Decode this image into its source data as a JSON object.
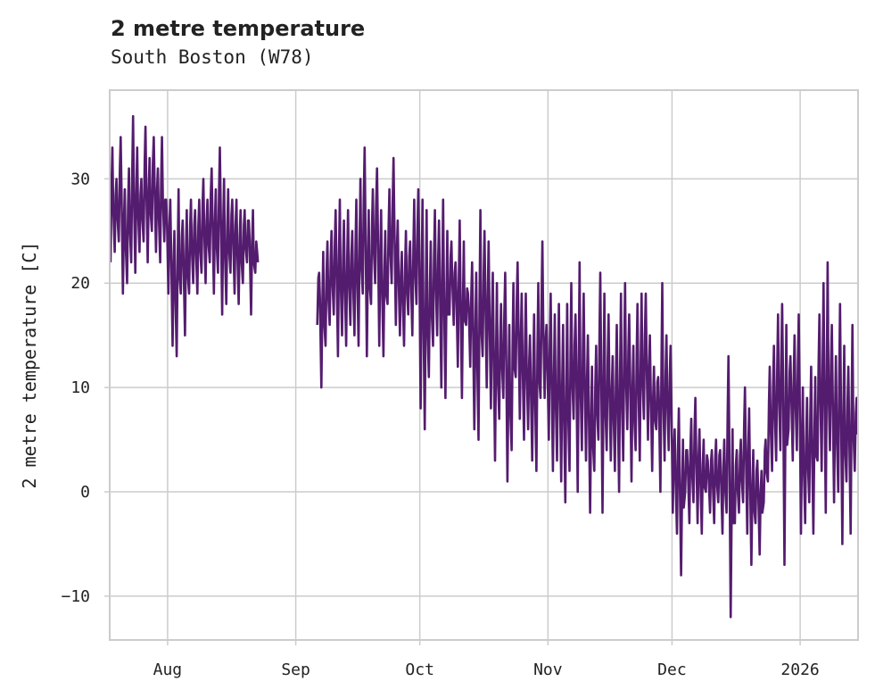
{
  "chart_data": {
    "type": "line",
    "title": "2 metre temperature",
    "subtitle": "South Boston (W78)",
    "xlabel": "",
    "ylabel": "2 metre temperature [C]",
    "ylim": [
      -14.2,
      38.5
    ],
    "yticks": [
      -10,
      0,
      10,
      20,
      30
    ],
    "ytick_labels": [
      "−10",
      "0",
      "10",
      "20",
      "30"
    ],
    "xlim": [
      "2025-07-18",
      "2026-01-15"
    ],
    "xticks": [
      "2025-08-01",
      "2025-09-01",
      "2025-10-01",
      "2025-11-01",
      "2025-12-01",
      "2026-01-01"
    ],
    "xtick_labels": [
      "Aug",
      "Sep",
      "Oct",
      "Nov",
      "Dec",
      "2026"
    ],
    "grid": true,
    "line_color": "#541c6e",
    "series": [
      {
        "name": "2 metre temperature",
        "start_date": "2025-07-18",
        "daily_high": [
          33,
          30,
          34,
          29,
          31,
          36,
          33,
          30,
          35,
          32,
          34,
          31,
          34,
          28,
          28,
          25,
          29,
          26,
          27,
          28,
          27,
          28,
          30,
          28,
          31,
          29,
          33,
          30,
          29,
          28,
          28,
          27,
          27,
          26,
          27,
          23,
          null,
          null,
          null,
          null,
          null,
          null,
          null,
          null,
          null,
          null,
          null,
          null,
          null,
          null,
          21,
          23,
          24,
          25,
          27,
          28,
          26,
          27,
          25,
          28,
          30,
          33,
          27,
          29,
          31,
          27,
          25,
          29,
          32,
          26,
          23,
          25,
          24,
          28,
          29,
          28,
          27,
          24,
          27,
          26,
          28,
          25,
          24,
          22,
          26,
          24,
          19,
          22,
          21,
          27,
          25,
          24,
          21,
          20,
          18,
          21,
          16,
          20,
          22,
          19,
          19,
          15,
          17,
          20,
          24,
          16,
          19,
          17,
          18,
          16,
          18,
          20,
          17,
          22,
          19,
          15,
          12,
          14,
          21,
          19,
          17,
          13,
          16,
          19,
          20,
          17,
          14,
          18,
          19,
          19,
          15,
          12,
          11,
          20,
          15,
          14,
          6,
          8,
          5,
          4,
          7,
          9,
          6,
          5,
          3,
          4,
          5,
          4,
          5,
          13,
          6,
          4,
          5,
          10,
          8,
          4,
          3,
          2,
          5,
          12,
          14,
          17,
          18,
          16,
          13,
          15,
          17,
          10,
          9,
          12,
          11,
          17,
          20,
          22,
          16,
          13,
          18,
          14,
          12,
          16,
          9,
          8
        ],
        "daily_low": [
          22,
          23,
          24,
          19,
          20,
          22,
          21,
          23,
          24,
          22,
          25,
          23,
          22,
          24,
          19,
          14,
          13,
          19,
          15,
          19,
          20,
          19,
          21,
          20,
          22,
          19,
          21,
          17,
          18,
          21,
          19,
          18,
          20,
          22,
          17,
          21,
          null,
          null,
          null,
          null,
          null,
          null,
          null,
          null,
          null,
          null,
          null,
          null,
          null,
          null,
          16,
          10,
          14,
          16,
          17,
          13,
          15,
          14,
          16,
          15,
          14,
          19,
          13,
          18,
          20,
          14,
          13,
          18,
          20,
          16,
          15,
          14,
          17,
          15,
          18,
          8,
          6,
          11,
          14,
          15,
          10,
          9,
          17,
          16,
          12,
          9,
          16,
          12,
          6,
          5,
          13,
          10,
          8,
          3,
          7,
          9,
          1,
          4,
          11,
          7,
          5,
          6,
          3,
          2,
          9,
          9,
          5,
          2,
          3,
          1,
          -1,
          2,
          7,
          0,
          4,
          3,
          -2,
          2,
          5,
          -2,
          4,
          3,
          2,
          0,
          3,
          6,
          1,
          4,
          3,
          7,
          5,
          2,
          6,
          0,
          3,
          4,
          -2,
          -4,
          -8,
          0,
          -3,
          -1,
          -3,
          -4,
          0,
          -2,
          -3,
          -1,
          -4,
          -2,
          -12,
          -3,
          -2,
          -1,
          -4,
          -7,
          -3,
          -6,
          -1,
          1,
          2,
          3,
          4,
          -7,
          6,
          3,
          4,
          -4,
          -3,
          -1,
          -4,
          3,
          2,
          -2,
          4,
          -1,
          0,
          -5,
          1,
          -4,
          2,
          3
        ]
      }
    ]
  }
}
